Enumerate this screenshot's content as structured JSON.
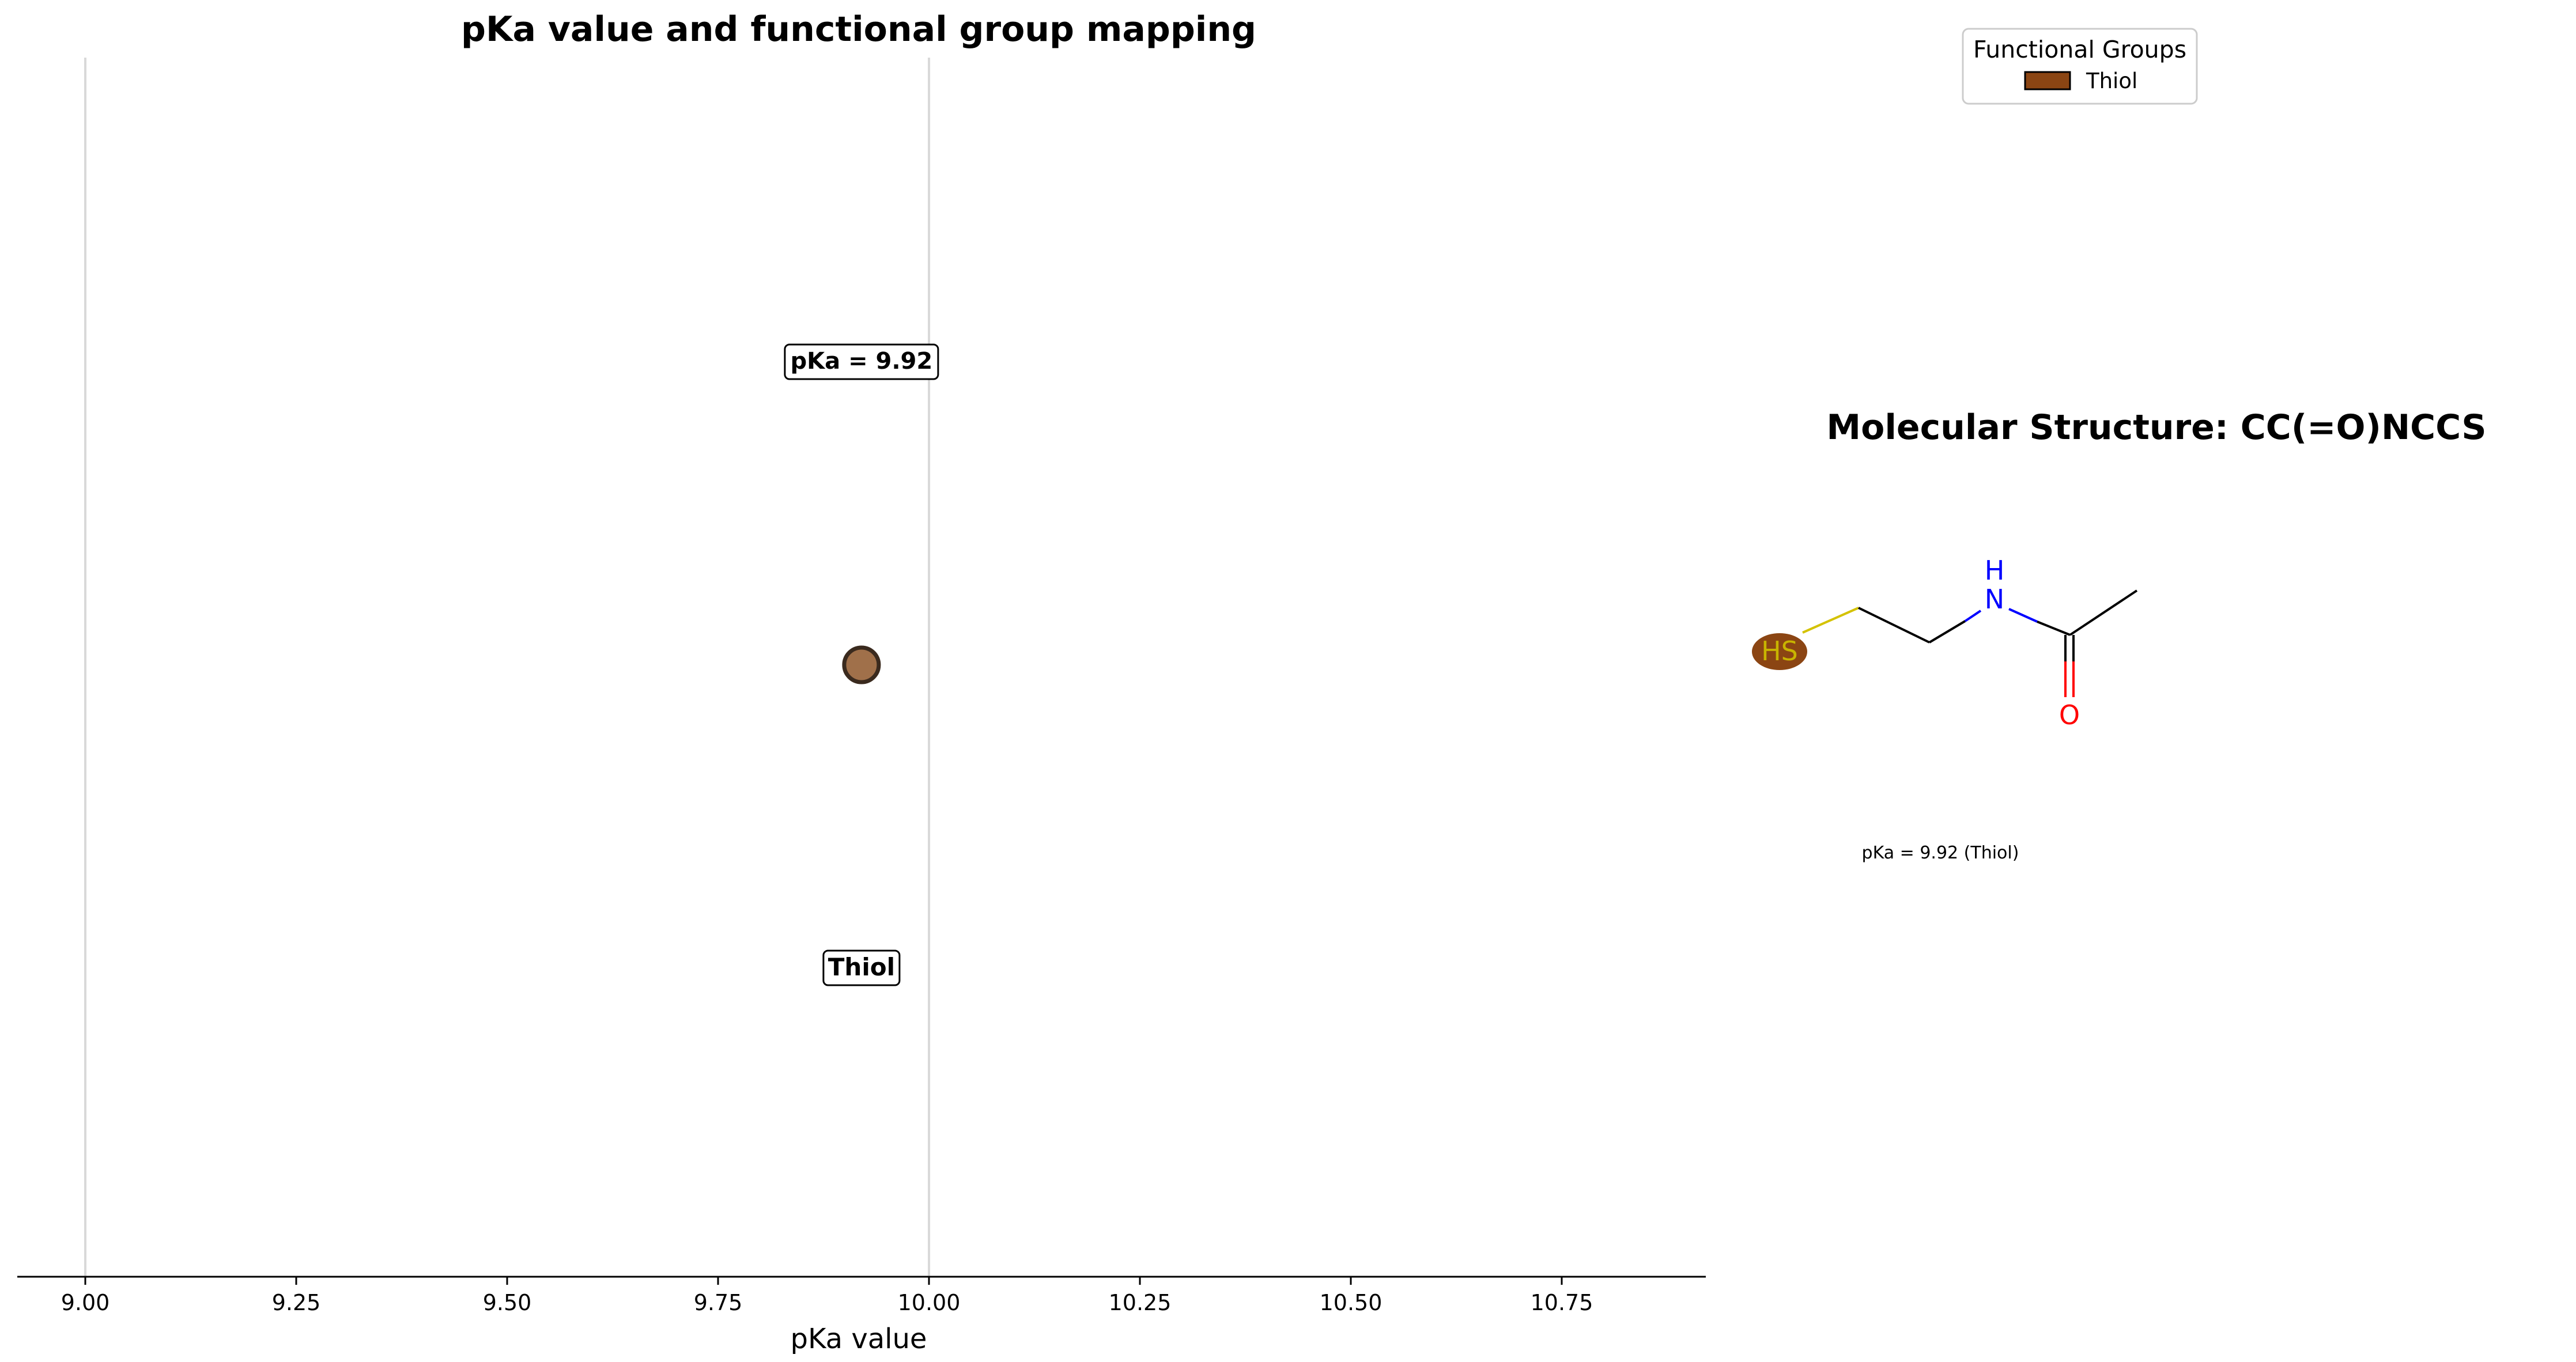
{
  "chart_data": {
    "type": "scatter",
    "title": "pKa value and functional group mapping",
    "xlabel": "pKa value",
    "ylabel": "",
    "xlim": [
      8.92,
      10.92
    ],
    "xticks": [
      9.0,
      9.25,
      9.5,
      9.75,
      10.0,
      10.25,
      10.5,
      10.75
    ],
    "xtick_labels": [
      "9.00",
      "9.25",
      "9.50",
      "9.75",
      "10.00",
      "10.25",
      "10.50",
      "10.75"
    ],
    "reference_lines": [
      9.0,
      10.0
    ],
    "points": [
      {
        "x": 9.92,
        "group": "Thiol",
        "value_label": "pKa = 9.92",
        "group_label": "Thiol",
        "color": "#8B4513"
      }
    ],
    "legend": {
      "title": "Functional Groups",
      "entries": [
        {
          "label": "Thiol",
          "color": "#8B4513"
        }
      ],
      "placement": "top-right"
    }
  },
  "molecule": {
    "title": "Molecular Structure: CC(=O)NCCS",
    "smiles": "CC(=O)NCCS",
    "atoms": {
      "thiol": "HS",
      "nitrogen_h": "H",
      "nitrogen": "N",
      "oxygen": "O"
    },
    "highlight_group": "Thiol",
    "highlight_color": "#8B4513",
    "caption": "pKa = 9.92 (Thiol)"
  },
  "colors": {
    "thiol_point": "#A0704A",
    "sulfur_text": "#C8B400",
    "sulfur_bond": "#D4C200",
    "nitrogen": "#0000FF",
    "oxygen": "#FF0000",
    "bond": "#000000",
    "gridline": "#D9D9D9"
  }
}
